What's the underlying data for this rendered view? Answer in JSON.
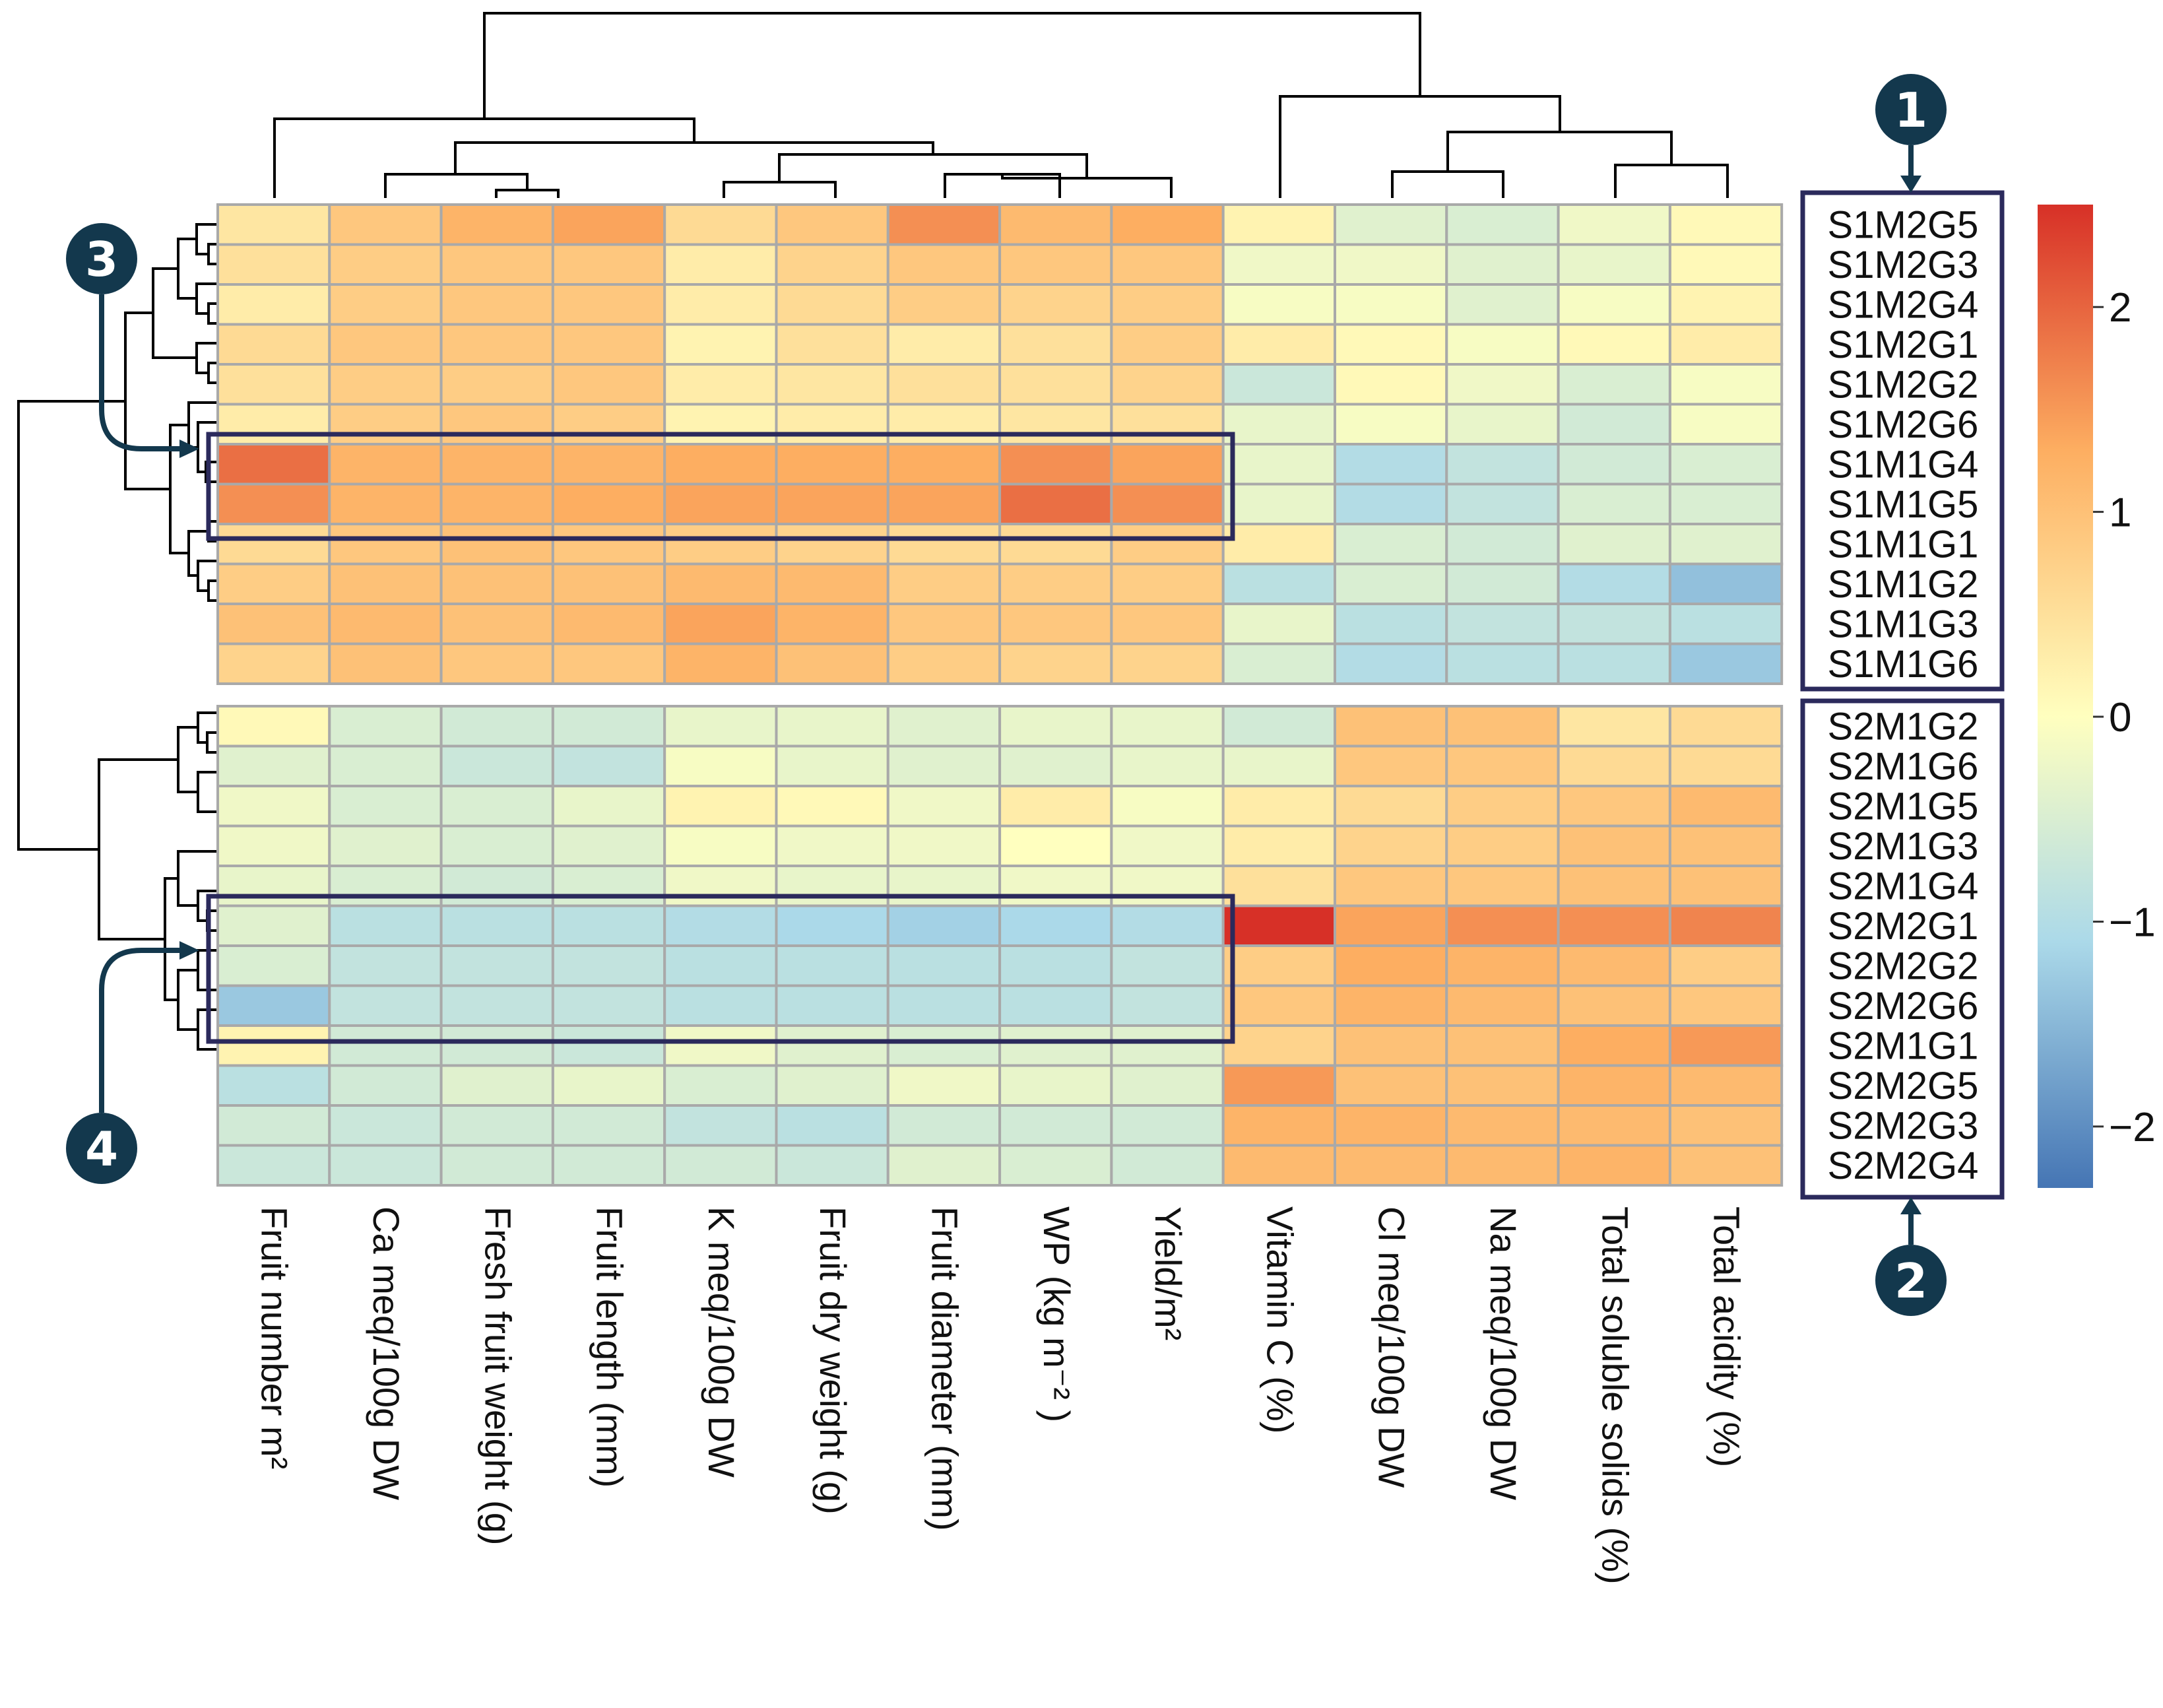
{
  "chart_data": {
    "type": "heatmap",
    "title": "",
    "columns": [
      "Fruit number m²",
      "Ca meq/100g DW",
      "Fresh fruit weight (g)",
      "Fruit length (mm)",
      "K meq/100g DW",
      "Fruit dry weight   (g)",
      "Fruit diameter (mm)",
      "WP (kg m⁻² )",
      "Yield/m²",
      "Vitamin C (%)",
      "Cl meq/100g DW",
      "Na meq/100g DW",
      "Total soluble solids   (%)",
      "Total acidity  (%)"
    ],
    "row_groups": [
      {
        "rows": [
          "S1M2G5",
          "S1M2G3",
          "S1M2G4",
          "S1M2G1",
          "S1M2G2",
          "S1M2G6",
          "S1M1G4",
          "S1M1G5",
          "S1M1G1",
          "S1M1G2",
          "S1M1G3",
          "S1M1G6"
        ],
        "values": [
          [
            0.4,
            0.9,
            1.2,
            1.4,
            0.6,
            0.9,
            1.6,
            1.1,
            1.3,
            0.2,
            -0.4,
            -0.5,
            -0.2,
            0.1
          ],
          [
            0.5,
            0.8,
            0.9,
            0.9,
            0.3,
            0.7,
            0.9,
            0.9,
            0.9,
            -0.2,
            -0.2,
            -0.4,
            -0.3,
            0.1
          ],
          [
            0.3,
            0.8,
            0.9,
            0.9,
            0.3,
            0.6,
            0.8,
            0.7,
            0.8,
            -0.1,
            -0.1,
            -0.4,
            -0.1,
            0.2
          ],
          [
            0.6,
            0.9,
            0.9,
            0.9,
            0.2,
            0.5,
            0.3,
            0.5,
            0.8,
            0.3,
            0.1,
            -0.1,
            0.1,
            0.3
          ],
          [
            0.5,
            0.8,
            0.8,
            0.9,
            0.3,
            0.4,
            0.5,
            0.5,
            0.7,
            -0.7,
            0.1,
            -0.2,
            -0.5,
            -0.1
          ],
          [
            0.3,
            0.8,
            0.9,
            0.8,
            0.2,
            0.3,
            0.3,
            0.4,
            0.5,
            -0.3,
            -0.1,
            -0.3,
            -0.6,
            -0.1
          ],
          [
            1.9,
            1.2,
            1.2,
            1.2,
            1.3,
            1.3,
            1.3,
            1.6,
            1.4,
            -0.3,
            -1.0,
            -0.8,
            -0.6,
            -0.5
          ],
          [
            1.6,
            1.2,
            1.2,
            1.3,
            1.4,
            1.4,
            1.4,
            1.9,
            1.6,
            -0.3,
            -1.0,
            -0.8,
            -0.5,
            -0.5
          ],
          [
            0.6,
            0.9,
            1.0,
            0.9,
            0.8,
            0.7,
            0.6,
            0.6,
            0.8,
            0.3,
            -0.5,
            -0.6,
            -0.4,
            -0.4
          ],
          [
            0.8,
            1.0,
            1.0,
            1.0,
            1.1,
            1.1,
            0.8,
            0.8,
            0.8,
            -0.9,
            -0.5,
            -0.6,
            -1.0,
            -1.4
          ],
          [
            1.0,
            1.1,
            1.0,
            1.1,
            1.4,
            1.2,
            0.9,
            0.9,
            0.9,
            -0.3,
            -0.9,
            -0.8,
            -0.8,
            -0.9
          ],
          [
            0.7,
            1.0,
            0.9,
            0.9,
            1.2,
            1.0,
            0.8,
            0.7,
            0.7,
            -0.5,
            -1.0,
            -0.9,
            -0.9,
            -1.3
          ]
        ]
      },
      {
        "rows": [
          "S2M1G2",
          "S2M1G6",
          "S2M1G5",
          "S2M1G3",
          "S2M1G4",
          "S2M2G1",
          "S2M2G2",
          "S2M2G6",
          "S2M1G1",
          "S2M2G5",
          "S2M2G3",
          "S2M2G4"
        ],
        "values": [
          [
            0.1,
            -0.5,
            -0.6,
            -0.6,
            -0.3,
            -0.3,
            -0.4,
            -0.3,
            -0.3,
            -0.6,
            1.0,
            1.0,
            0.4,
            0.6
          ],
          [
            -0.4,
            -0.5,
            -0.7,
            -0.8,
            -0.1,
            -0.3,
            -0.4,
            -0.4,
            -0.3,
            -0.3,
            0.9,
            0.9,
            0.6,
            0.6
          ],
          [
            -0.2,
            -0.5,
            -0.5,
            -0.3,
            0.2,
            0.1,
            -0.2,
            0.3,
            -0.1,
            0.3,
            0.6,
            0.8,
            0.9,
            1.1
          ],
          [
            -0.2,
            -0.4,
            -0.5,
            -0.4,
            -0.1,
            -0.2,
            -0.2,
            0.0,
            -0.2,
            0.3,
            0.7,
            0.8,
            1.0,
            1.0
          ],
          [
            -0.3,
            -0.5,
            -0.6,
            -0.5,
            -0.2,
            -0.3,
            -0.3,
            -0.2,
            -0.2,
            0.5,
            0.9,
            0.9,
            1.0,
            1.0
          ],
          [
            -0.4,
            -0.9,
            -0.9,
            -0.9,
            -1.0,
            -1.1,
            -1.2,
            -1.1,
            -1.0,
            2.5,
            1.4,
            1.6,
            1.6,
            1.7
          ],
          [
            -0.5,
            -0.8,
            -0.8,
            -0.8,
            -0.9,
            -0.9,
            -0.9,
            -0.9,
            -0.8,
            0.8,
            1.3,
            1.2,
            1.1,
            0.8
          ],
          [
            -1.3,
            -0.8,
            -0.8,
            -0.8,
            -0.9,
            -0.9,
            -0.9,
            -0.9,
            -0.8,
            0.9,
            1.2,
            1.1,
            1.0,
            0.9
          ],
          [
            0.2,
            -0.6,
            -0.6,
            -0.7,
            -0.2,
            -0.4,
            -0.5,
            -0.4,
            -0.4,
            0.7,
            1.0,
            1.0,
            1.3,
            1.5
          ],
          [
            -0.9,
            -0.6,
            -0.4,
            -0.3,
            -0.5,
            -0.4,
            -0.2,
            -0.3,
            -0.4,
            1.5,
            1.0,
            1.0,
            1.2,
            1.1
          ],
          [
            -0.6,
            -0.7,
            -0.6,
            -0.6,
            -0.8,
            -0.9,
            -0.6,
            -0.6,
            -0.6,
            1.2,
            1.2,
            1.1,
            1.1,
            1.0
          ],
          [
            -0.7,
            -0.7,
            -0.6,
            -0.6,
            -0.6,
            -0.7,
            -0.4,
            -0.5,
            -0.6,
            1.1,
            1.1,
            1.1,
            1.2,
            1.0
          ]
        ]
      }
    ],
    "colorbar": {
      "range": [
        -2.3,
        2.5
      ],
      "ticks": [
        2,
        1,
        0,
        -1,
        -2
      ],
      "tick_labels": [
        "2",
        "1",
        "0",
        "−1",
        "−2"
      ]
    },
    "badges": [
      "1",
      "2",
      "3",
      "4"
    ]
  }
}
